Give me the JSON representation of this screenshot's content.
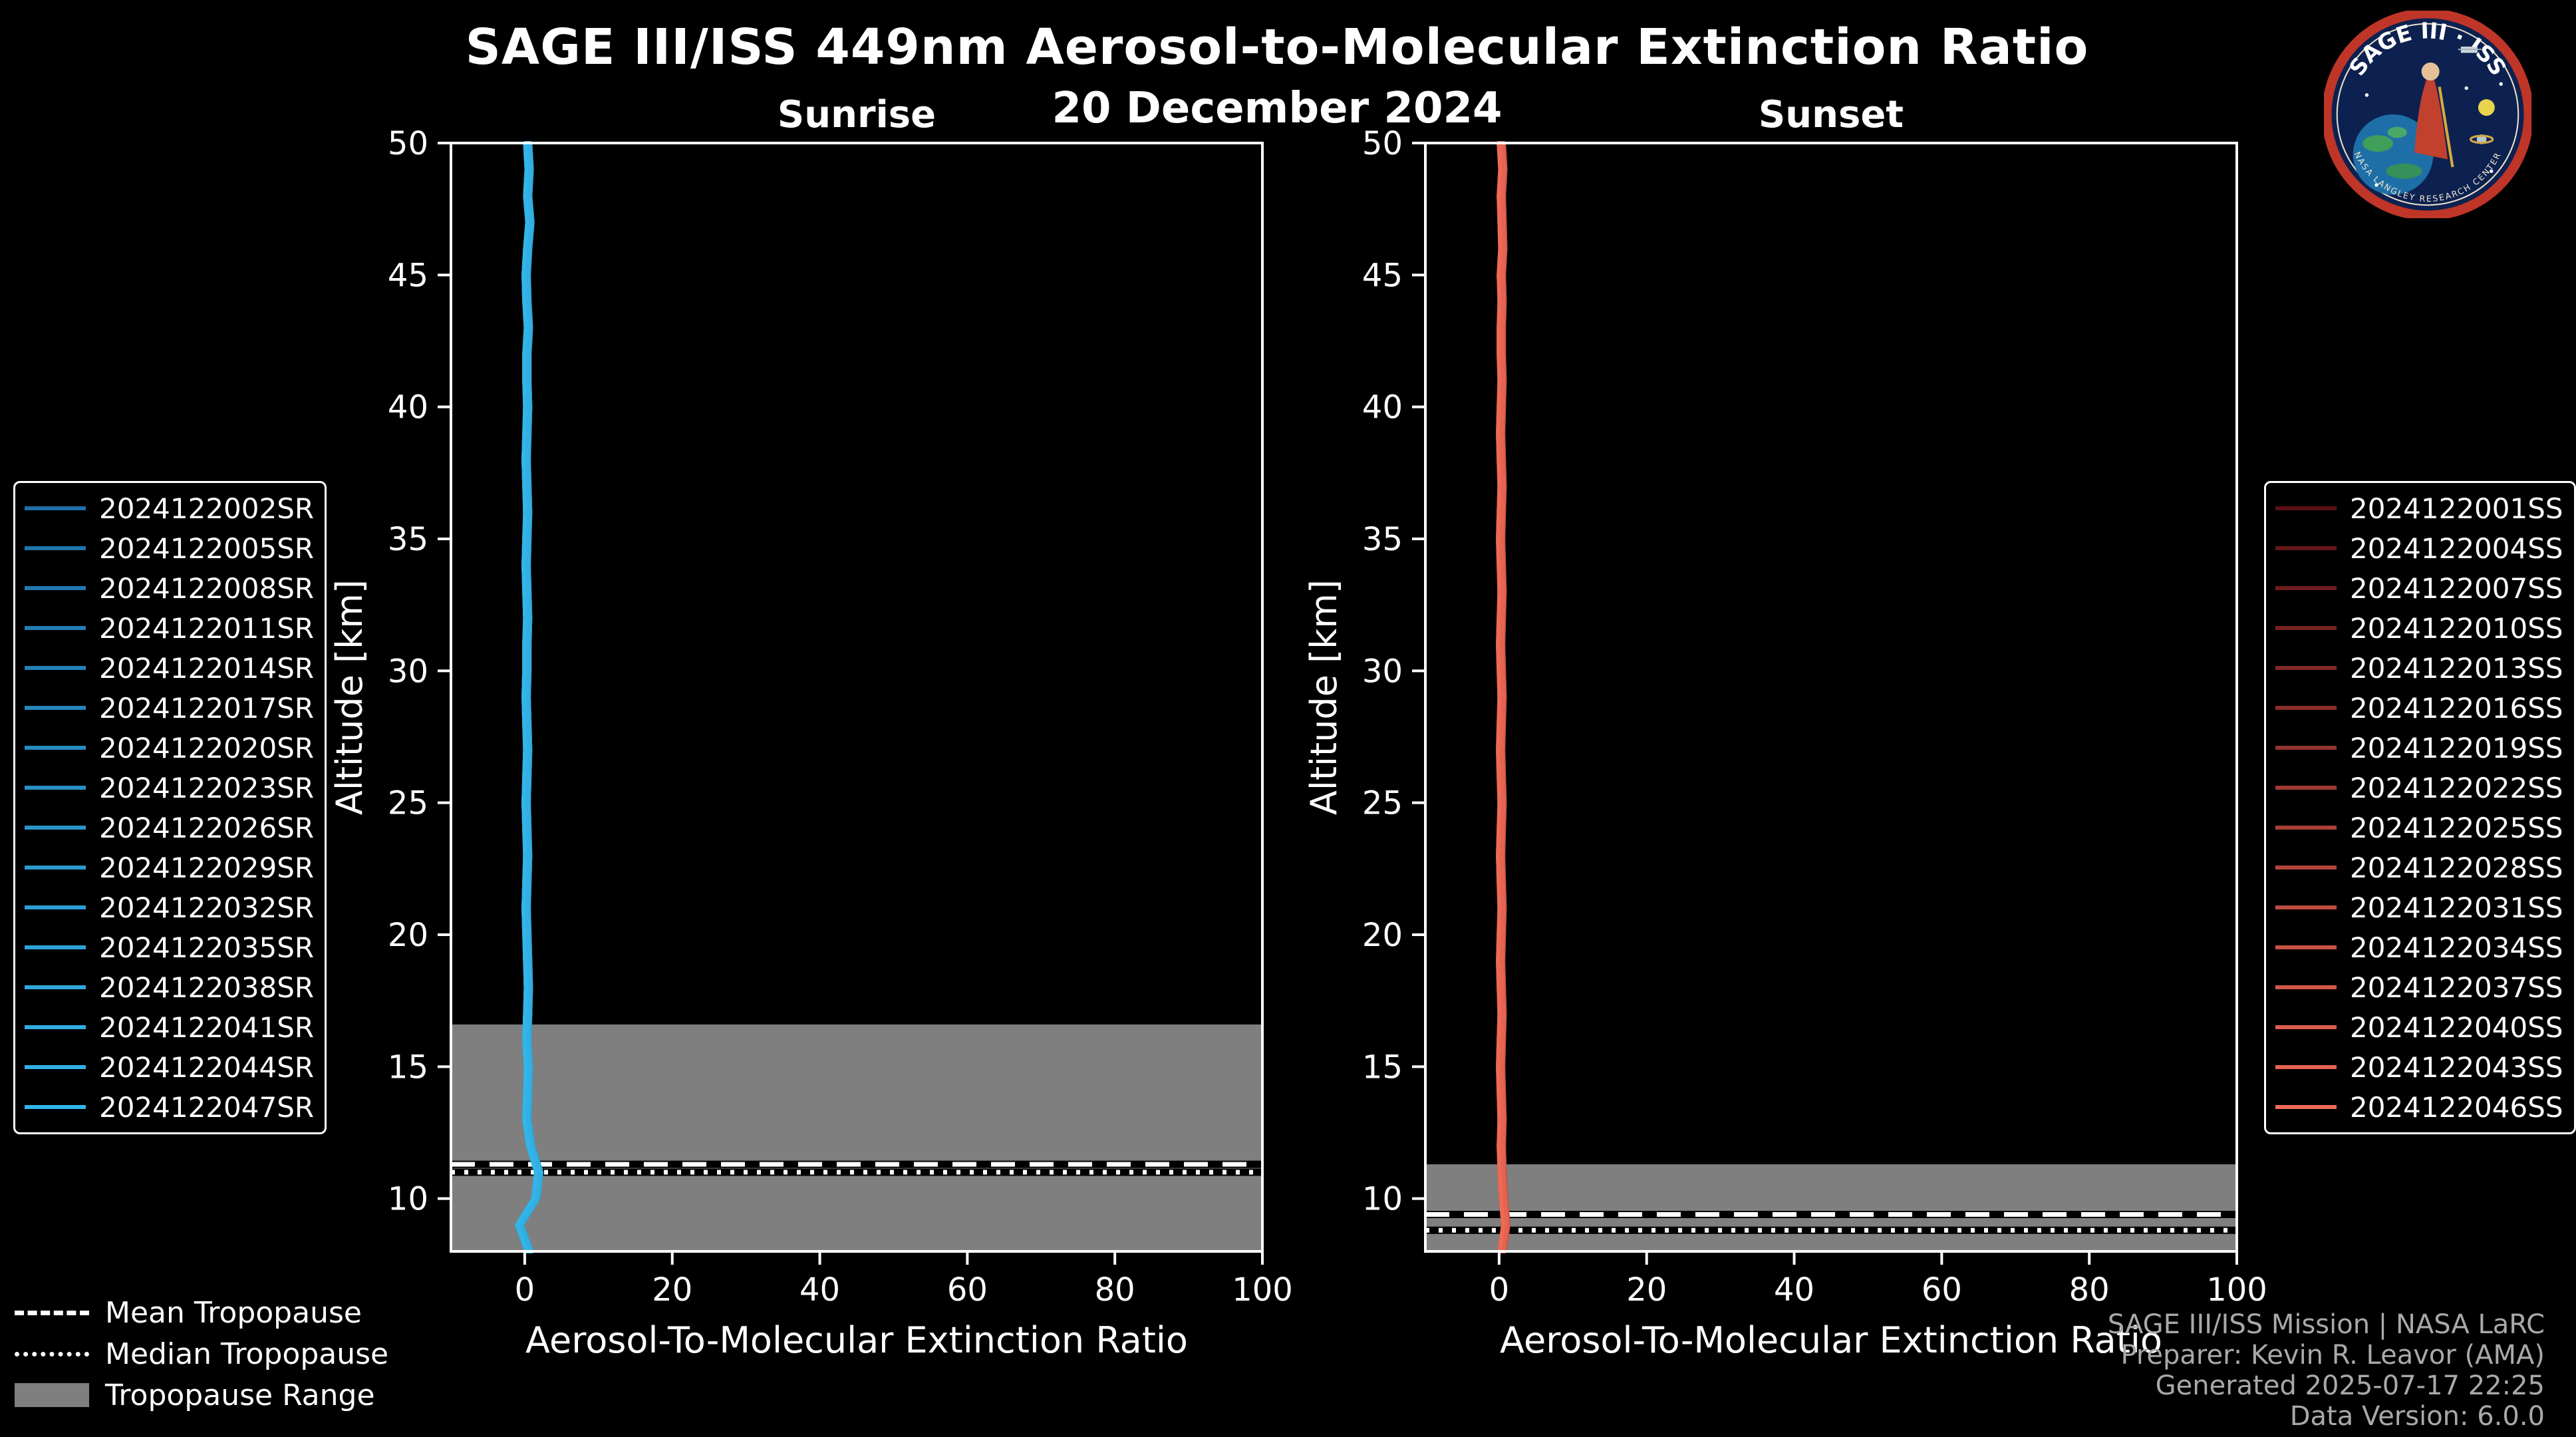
{
  "header": {
    "title": "SAGE III/ISS 449nm Aerosol-to-Molecular Extinction Ratio",
    "date": "20 December 2024"
  },
  "logo": {
    "text": "SAGE III · ISS",
    "ring_text": "NASA LANGLEY RESEARCH CENTER"
  },
  "tropopause_legend": {
    "mean": "Mean Tropopause",
    "median": "Median Tropopause",
    "range": "Tropopause Range"
  },
  "credits": {
    "line1": "SAGE III/ISS Mission | NASA LaRC",
    "line2": "Preparer: Kevin R. Leavor (AMA)",
    "line3": "Generated 2025-07-17 22:25",
    "line4": "Data Version: 6.0.0"
  },
  "chart_data": [
    {
      "type": "line",
      "title": "Sunrise",
      "xlabel": "Aerosol-To-Molecular Extinction Ratio",
      "ylabel": "Altitude [km]",
      "xlim": [
        -10,
        100
      ],
      "ylim": [
        8,
        50
      ],
      "xticks": [
        0,
        20,
        40,
        60,
        80,
        100
      ],
      "yticks": [
        10,
        15,
        20,
        25,
        30,
        35,
        40,
        45,
        50
      ],
      "color_start": "#1f6fa8",
      "color_end": "#33b5e8",
      "band_color": "#7f7f7f",
      "tropopause": {
        "mean": 11.3,
        "median": 11.0,
        "range": [
          8,
          16.6
        ]
      },
      "legend": [
        "2024122002SR",
        "2024122005SR",
        "2024122008SR",
        "2024122011SR",
        "2024122014SR",
        "2024122017SR",
        "2024122020SR",
        "2024122023SR",
        "2024122026SR",
        "2024122029SR",
        "2024122032SR",
        "2024122035SR",
        "2024122038SR",
        "2024122041SR",
        "2024122044SR",
        "2024122047SR"
      ],
      "profile": {
        "altitude": [
          8,
          9,
          10,
          11,
          12,
          13,
          14,
          15,
          16,
          17,
          18,
          19,
          20,
          21,
          22,
          23,
          24,
          25,
          26,
          27,
          28,
          29,
          30,
          31,
          32,
          33,
          34,
          35,
          36,
          37,
          38,
          39,
          40,
          41,
          42,
          43,
          44,
          45,
          46,
          47,
          48,
          49,
          50
        ],
        "ratio": [
          0.6,
          -0.7,
          1.5,
          1.9,
          0.8,
          0.3,
          0.4,
          0.5,
          0.3,
          0.4,
          0.5,
          0.4,
          0.3,
          0.2,
          0.3,
          0.4,
          0.3,
          0.2,
          0.3,
          0.4,
          0.3,
          0.2,
          0.3,
          0.3,
          0.4,
          0.3,
          0.2,
          0.3,
          0.4,
          0.3,
          0.2,
          0.3,
          0.4,
          0.3,
          0.3,
          0.5,
          0.3,
          0.2,
          0.4,
          0.7,
          0.4,
          0.6,
          0.4
        ]
      }
    },
    {
      "type": "line",
      "title": "Sunset",
      "xlabel": "Aerosol-To-Molecular Extinction Ratio",
      "ylabel": "Altitude [km]",
      "xlim": [
        -10,
        100
      ],
      "ylim": [
        8,
        50
      ],
      "xticks": [
        0,
        20,
        40,
        60,
        80,
        100
      ],
      "yticks": [
        10,
        15,
        20,
        25,
        30,
        35,
        40,
        45,
        50
      ],
      "color_start": "#5a1015",
      "color_end": "#ee6a55",
      "band_color": "#7f7f7f",
      "tropopause": {
        "mean": 9.4,
        "median": 8.8,
        "range": [
          8,
          11.3
        ]
      },
      "legend": [
        "2024122001SS",
        "2024122004SS",
        "2024122007SS",
        "2024122010SS",
        "2024122013SS",
        "2024122016SS",
        "2024122019SS",
        "2024122022SS",
        "2024122025SS",
        "2024122028SS",
        "2024122031SS",
        "2024122034SS",
        "2024122037SS",
        "2024122040SS",
        "2024122043SS",
        "2024122046SS"
      ],
      "profile": {
        "altitude": [
          8,
          9,
          10,
          11,
          12,
          13,
          14,
          15,
          16,
          17,
          18,
          19,
          20,
          21,
          22,
          23,
          24,
          25,
          26,
          27,
          28,
          29,
          30,
          31,
          32,
          33,
          34,
          35,
          36,
          37,
          38,
          39,
          40,
          41,
          42,
          43,
          44,
          45,
          46,
          47,
          48,
          49,
          50
        ],
        "ratio": [
          0.4,
          0.9,
          0.6,
          0.4,
          0.3,
          0.4,
          0.3,
          0.2,
          0.3,
          0.4,
          0.3,
          0.2,
          0.3,
          0.4,
          0.3,
          0.2,
          0.3,
          0.4,
          0.3,
          0.2,
          0.3,
          0.4,
          0.3,
          0.2,
          0.3,
          0.4,
          0.3,
          0.2,
          0.3,
          0.4,
          0.3,
          0.2,
          0.3,
          0.4,
          0.3,
          0.3,
          0.4,
          0.3,
          0.5,
          0.4,
          0.3,
          0.5,
          0.3
        ]
      }
    }
  ]
}
